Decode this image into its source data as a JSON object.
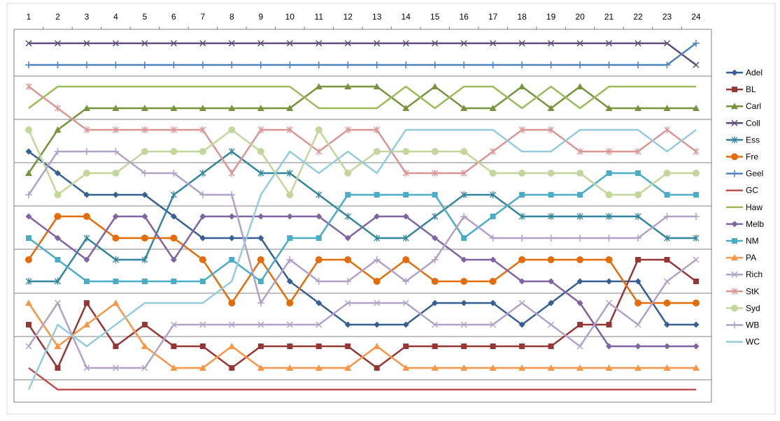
{
  "chart_data": {
    "type": "line",
    "title": "",
    "xlabel": "",
    "ylabel": "",
    "x": [
      1,
      2,
      3,
      4,
      5,
      6,
      7,
      8,
      9,
      10,
      11,
      12,
      13,
      14,
      15,
      16,
      17,
      18,
      19,
      20,
      21,
      22,
      23,
      24
    ],
    "ylim": [
      1,
      17
    ],
    "y_inverted": true,
    "grid": "horizontal",
    "legend_position": "right",
    "series": [
      {
        "name": "Adel",
        "color": "#366092",
        "marker": "diamond",
        "values": [
          6,
          7,
          8,
          8,
          8,
          9,
          10,
          10,
          10,
          12,
          13,
          14,
          14,
          14,
          13,
          13,
          13,
          14,
          13,
          12,
          12,
          12,
          14,
          14
        ]
      },
      {
        "name": "BL",
        "color": "#953735",
        "marker": "square",
        "values": [
          14,
          16,
          13,
          15,
          14,
          15,
          15,
          16,
          15,
          15,
          15,
          15,
          16,
          15,
          15,
          15,
          15,
          15,
          15,
          14,
          14,
          11,
          11,
          12
        ]
      },
      {
        "name": "Carl",
        "color": "#77933C",
        "marker": "triangle",
        "values": [
          7,
          5,
          4,
          4,
          4,
          4,
          4,
          4,
          4,
          4,
          3,
          3,
          3,
          4,
          3,
          4,
          4,
          3,
          4,
          3,
          4,
          4,
          4,
          4
        ]
      },
      {
        "name": "Coll",
        "color": "#604A7B",
        "marker": "x",
        "values": [
          1,
          1,
          1,
          1,
          1,
          1,
          1,
          1,
          1,
          1,
          1,
          1,
          1,
          1,
          1,
          1,
          1,
          1,
          1,
          1,
          1,
          1,
          1,
          2
        ]
      },
      {
        "name": "Ess",
        "color": "#31859C",
        "marker": "star",
        "values": [
          12,
          12,
          10,
          11,
          11,
          8,
          7,
          6,
          7,
          7,
          8,
          9,
          10,
          10,
          9,
          8,
          8,
          9,
          9,
          9,
          9,
          9,
          10,
          10
        ]
      },
      {
        "name": "Fre",
        "color": "#E46C0A",
        "marker": "circle",
        "values": [
          11,
          9,
          9,
          10,
          10,
          10,
          11,
          13,
          11,
          13,
          11,
          11,
          12,
          11,
          12,
          12,
          12,
          11,
          11,
          11,
          11,
          13,
          13,
          13
        ]
      },
      {
        "name": "Geel",
        "color": "#4F81BD",
        "marker": "plus",
        "values": [
          2,
          2,
          2,
          2,
          2,
          2,
          2,
          2,
          2,
          2,
          2,
          2,
          2,
          2,
          2,
          2,
          2,
          2,
          2,
          2,
          2,
          2,
          2,
          1
        ]
      },
      {
        "name": "GC",
        "color": "#C0504D",
        "marker": "none",
        "values": [
          16,
          17,
          17,
          17,
          17,
          17,
          17,
          17,
          17,
          17,
          17,
          17,
          17,
          17,
          17,
          17,
          17,
          17,
          17,
          17,
          17,
          17,
          17,
          17
        ]
      },
      {
        "name": "Haw",
        "color": "#9BBB59",
        "marker": "none",
        "values": [
          4,
          3,
          3,
          3,
          3,
          3,
          3,
          3,
          3,
          3,
          4,
          4,
          4,
          3,
          4,
          3,
          3,
          4,
          3,
          4,
          3,
          3,
          3,
          3
        ]
      },
      {
        "name": "Melb",
        "color": "#8064A2",
        "marker": "diamond",
        "values": [
          9,
          10,
          11,
          9,
          9,
          11,
          9,
          9,
          9,
          9,
          9,
          10,
          9,
          9,
          10,
          11,
          11,
          12,
          12,
          13,
          15,
          15,
          15,
          15
        ]
      },
      {
        "name": "NM",
        "color": "#4BACC6",
        "marker": "square",
        "values": [
          10,
          11,
          12,
          12,
          12,
          12,
          12,
          11,
          12,
          10,
          10,
          8,
          8,
          8,
          8,
          10,
          9,
          8,
          8,
          8,
          7,
          7,
          8,
          8
        ]
      },
      {
        "name": "PA",
        "color": "#F79646",
        "marker": "triangle",
        "values": [
          13,
          15,
          14,
          13,
          15,
          16,
          16,
          15,
          16,
          16,
          16,
          16,
          15,
          16,
          16,
          16,
          16,
          16,
          16,
          16,
          16,
          16,
          16,
          16
        ]
      },
      {
        "name": "Rich",
        "color": "#B3A2C7",
        "marker": "x",
        "values": [
          15,
          13,
          16,
          16,
          16,
          14,
          14,
          14,
          14,
          14,
          14,
          13,
          13,
          13,
          14,
          14,
          14,
          13,
          14,
          15,
          13,
          14,
          12,
          11
        ]
      },
      {
        "name": "StK",
        "color": "#D99694",
        "marker": "star",
        "values": [
          3,
          4,
          5,
          5,
          5,
          5,
          5,
          7,
          5,
          5,
          6,
          5,
          5,
          7,
          7,
          7,
          6,
          5,
          5,
          6,
          6,
          6,
          5,
          6
        ]
      },
      {
        "name": "Syd",
        "color": "#C3D69B",
        "marker": "circle",
        "values": [
          5,
          8,
          7,
          7,
          6,
          6,
          6,
          5,
          6,
          8,
          5,
          7,
          6,
          6,
          6,
          6,
          7,
          7,
          7,
          7,
          8,
          8,
          7,
          7
        ]
      },
      {
        "name": "WB",
        "color": "#B2A1C7",
        "marker": "plus",
        "values": [
          8,
          6,
          6,
          6,
          7,
          7,
          8,
          8,
          13,
          11,
          12,
          12,
          11,
          12,
          11,
          9,
          10,
          10,
          10,
          10,
          10,
          10,
          9,
          9
        ]
      },
      {
        "name": "WC",
        "color": "#93CDDD",
        "marker": "none",
        "values": [
          17,
          14,
          15,
          14,
          13,
          13,
          13,
          12,
          8,
          6,
          7,
          6,
          7,
          5,
          5,
          5,
          5,
          6,
          6,
          5,
          5,
          5,
          6,
          5
        ]
      }
    ]
  }
}
